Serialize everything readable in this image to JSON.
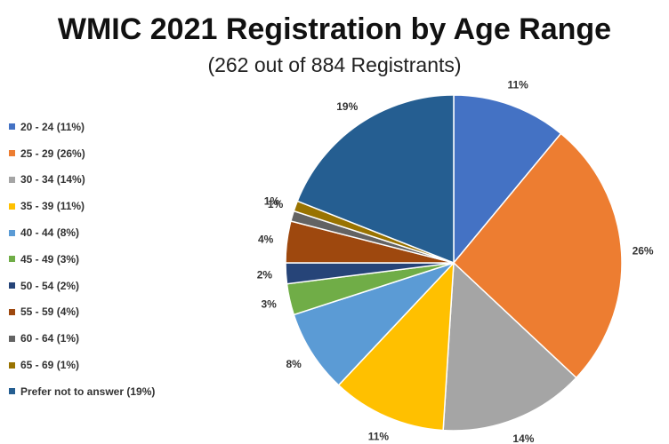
{
  "chart_data": {
    "type": "pie",
    "title": "WMIC 2021 Registration by Age Range",
    "subtitle": "(262 out of 884 Registrants)",
    "legend_position": "left",
    "slices": [
      {
        "label": "20 - 24 (11%)",
        "value": 11,
        "data_label": "11%",
        "color": "#4472C4"
      },
      {
        "label": "25 - 29 (26%)",
        "value": 26,
        "data_label": "26%",
        "color": "#ED7D31"
      },
      {
        "label": "30 - 34 (14%)",
        "value": 14,
        "data_label": "14%",
        "color": "#A5A5A5"
      },
      {
        "label": "35 - 39 (11%)",
        "value": 11,
        "data_label": "11%",
        "color": "#FFC000"
      },
      {
        "label": "40 - 44 (8%)",
        "value": 8,
        "data_label": "8%",
        "color": "#5B9BD5"
      },
      {
        "label": "45 - 49 (3%)",
        "value": 3,
        "data_label": "3%",
        "color": "#70AD47"
      },
      {
        "label": "50 - 54 (2%)",
        "value": 2,
        "data_label": "2%",
        "color": "#264478"
      },
      {
        "label": "55 - 59 (4%)",
        "value": 4,
        "data_label": "4%",
        "color": "#9E480E"
      },
      {
        "label": "60 - 64 (1%)",
        "value": 1,
        "data_label": "1%",
        "color": "#636363"
      },
      {
        "label": "65 - 69 (1%)",
        "value": 1,
        "data_label": "1%",
        "color": "#997300"
      },
      {
        "label": "Prefer not to answer (19%)",
        "value": 19,
        "data_label": "19%",
        "color": "#255E91"
      }
    ]
  }
}
